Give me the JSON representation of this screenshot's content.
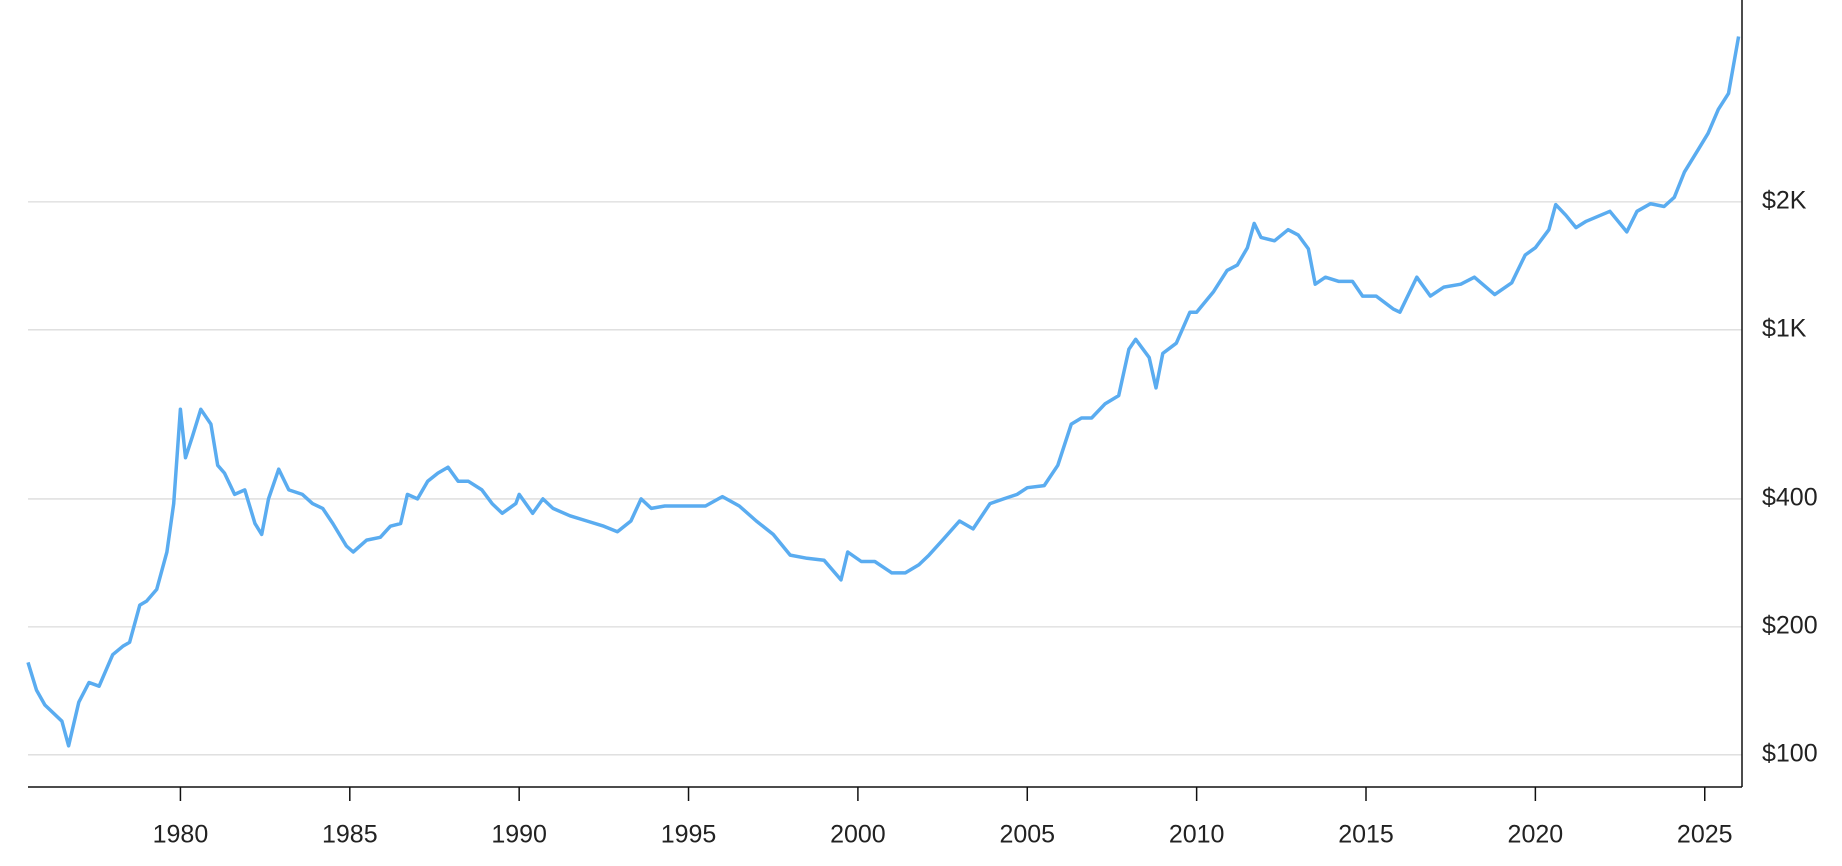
{
  "chart_data": {
    "type": "line",
    "color": "#5aacf0",
    "log_y": true,
    "grid": true,
    "y_axis_side": "right",
    "xlim": [
      1975.5,
      2026.1
    ],
    "ylim": [
      84,
      5970
    ],
    "xticks": [
      1980,
      1985,
      1990,
      1995,
      2000,
      2005,
      2010,
      2015,
      2020,
      2025
    ],
    "yticks": [
      {
        "value": 100,
        "label": "$100"
      },
      {
        "value": 200,
        "label": "$200"
      },
      {
        "value": 400,
        "label": "$400"
      },
      {
        "value": 1000,
        "label": "$1K"
      },
      {
        "value": 2000,
        "label": "$2K"
      }
    ],
    "x": [
      1975.5,
      1975.75,
      1976.0,
      1976.5,
      1976.7,
      1977.0,
      1977.3,
      1977.6,
      1978.0,
      1978.3,
      1978.5,
      1978.8,
      1979.0,
      1979.3,
      1979.6,
      1979.8,
      1980.0,
      1980.15,
      1980.35,
      1980.6,
      1980.9,
      1981.1,
      1981.3,
      1981.6,
      1981.9,
      1982.2,
      1982.4,
      1982.6,
      1982.9,
      1983.2,
      1983.6,
      1983.9,
      1984.2,
      1984.5,
      1984.9,
      1985.1,
      1985.5,
      1985.9,
      1986.2,
      1986.5,
      1986.7,
      1987.0,
      1987.3,
      1987.6,
      1987.9,
      1988.2,
      1988.5,
      1988.9,
      1989.2,
      1989.5,
      1989.9,
      1990.0,
      1990.4,
      1990.7,
      1991.0,
      1991.5,
      1992.0,
      1992.5,
      1992.9,
      1993.3,
      1993.6,
      1993.9,
      1994.3,
      1994.9,
      1995.5,
      1996.0,
      1996.5,
      1997.0,
      1997.5,
      1998.0,
      1998.5,
      1999.0,
      1999.5,
      1999.7,
      2000.1,
      2000.5,
      2001.0,
      2001.4,
      2001.8,
      2002.1,
      2002.5,
      2003.0,
      2003.4,
      2003.9,
      2004.3,
      2004.7,
      2005.0,
      2005.5,
      2005.9,
      2006.3,
      2006.6,
      2006.9,
      2007.3,
      2007.7,
      2008.0,
      2008.2,
      2008.6,
      2008.8,
      2009.0,
      2009.4,
      2009.8,
      2010.0,
      2010.5,
      2010.9,
      2011.2,
      2011.5,
      2011.7,
      2011.9,
      2012.3,
      2012.7,
      2013.0,
      2013.3,
      2013.5,
      2013.8,
      2014.2,
      2014.6,
      2014.9,
      2015.3,
      2015.8,
      2016.0,
      2016.5,
      2016.9,
      2017.3,
      2017.8,
      2018.2,
      2018.8,
      2019.3,
      2019.7,
      2020.0,
      2020.4,
      2020.6,
      2020.9,
      2021.2,
      2021.5,
      2022.2,
      2022.7,
      2023.0,
      2023.4,
      2023.8,
      2024.1,
      2024.4,
      2024.8,
      2025.1,
      2025.4,
      2025.7,
      2026.0
    ],
    "values": [
      165,
      142,
      131,
      120,
      105,
      133,
      148,
      145,
      172,
      180,
      184,
      225,
      230,
      245,
      300,
      390,
      650,
      500,
      560,
      650,
      600,
      480,
      460,
      410,
      420,
      350,
      330,
      400,
      470,
      420,
      410,
      390,
      380,
      350,
      310,
      300,
      320,
      325,
      345,
      350,
      410,
      400,
      440,
      460,
      475,
      440,
      440,
      420,
      390,
      370,
      390,
      410,
      370,
      400,
      380,
      365,
      355,
      345,
      335,
      355,
      400,
      380,
      385,
      385,
      385,
      405,
      385,
      355,
      330,
      295,
      290,
      287,
      258,
      300,
      285,
      285,
      268,
      268,
      280,
      295,
      320,
      355,
      340,
      390,
      400,
      410,
      425,
      430,
      480,
      600,
      620,
      620,
      670,
      700,
      900,
      950,
      860,
      730,
      880,
      930,
      1100,
      1100,
      1230,
      1380,
      1420,
      1560,
      1780,
      1650,
      1620,
      1720,
      1670,
      1550,
      1280,
      1330,
      1300,
      1300,
      1200,
      1200,
      1120,
      1100,
      1330,
      1200,
      1260,
      1280,
      1330,
      1210,
      1290,
      1500,
      1560,
      1720,
      1970,
      1860,
      1740,
      1800,
      1900,
      1700,
      1900,
      1980,
      1950,
      2050,
      2350,
      2650,
      2900,
      3300,
      3600,
      4900
    ]
  }
}
